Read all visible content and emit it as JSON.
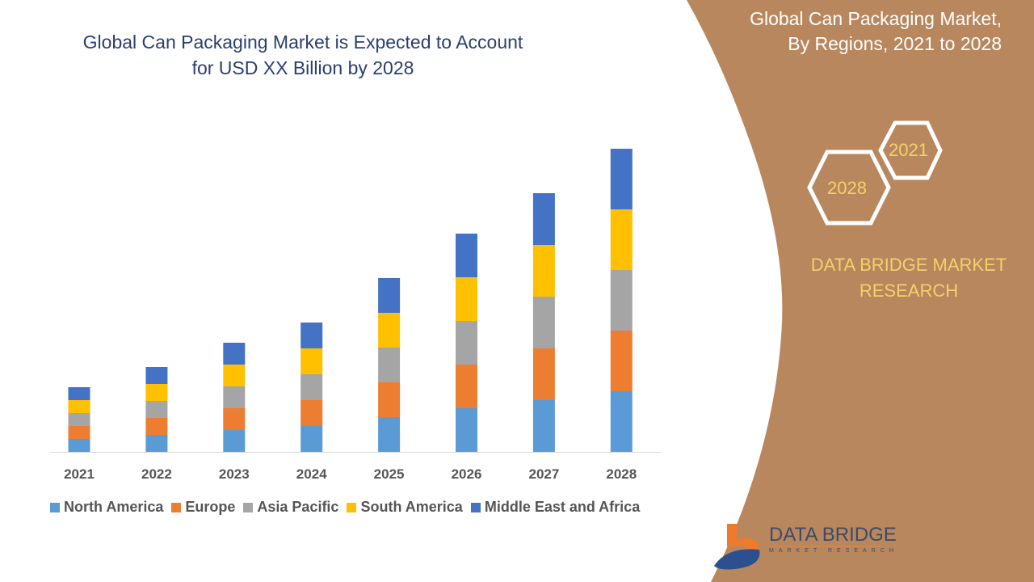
{
  "title": "Global Can Packaging Market is Expected to Account for USD XX Billion by 2028",
  "side_panel": {
    "title": "Global Can Packaging Market, By Regions, 2021 to 2028",
    "hex_labels": [
      "2021",
      "2028"
    ],
    "brand": "DATA BRIDGE MARKET RESEARCH",
    "logo_text": "DATA BRIDGE",
    "logo_subtext": "MARKET RESEARCH",
    "panel_color": "#B8875E"
  },
  "chart_data": {
    "type": "bar",
    "stacked": true,
    "title": "Global Can Packaging Market is Expected to Account for USD XX Billion by 2028",
    "categories": [
      "2021",
      "2022",
      "2023",
      "2024",
      "2025",
      "2026",
      "2027",
      "2028"
    ],
    "series": [
      {
        "name": "North America",
        "color": "#5B9BD5",
        "values": [
          16,
          21,
          27,
          32,
          43,
          54,
          64,
          75
        ]
      },
      {
        "name": "Europe",
        "color": "#ED7D31",
        "values": [
          16,
          21,
          27,
          32,
          43,
          54,
          64,
          75
        ]
      },
      {
        "name": "Asia Pacific",
        "color": "#A5A5A5",
        "values": [
          16,
          21,
          27,
          32,
          43,
          54,
          64,
          75
        ]
      },
      {
        "name": "South America",
        "color": "#FFC000",
        "values": [
          16,
          21,
          27,
          32,
          43,
          54,
          64,
          75
        ]
      },
      {
        "name": "Middle East and Africa",
        "color": "#4472C4",
        "values": [
          16,
          21,
          27,
          32,
          43,
          54,
          64,
          75
        ]
      }
    ],
    "ylim": [
      0,
      400
    ],
    "y_axis_shown": false,
    "grid": false,
    "legend": "bottom",
    "xlabel": "",
    "ylabel": ""
  }
}
